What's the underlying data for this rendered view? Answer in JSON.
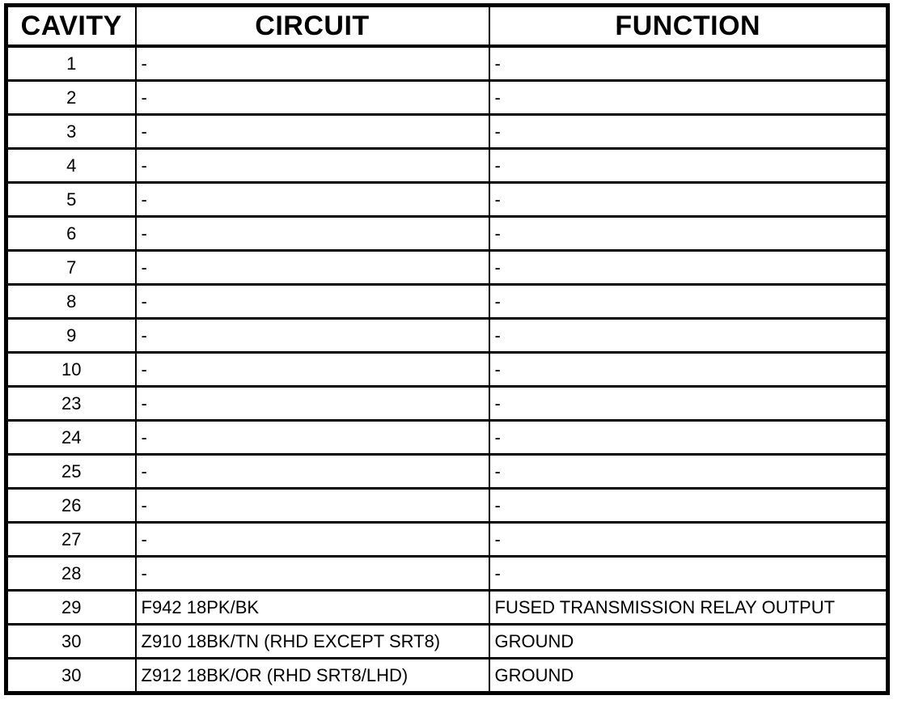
{
  "table": {
    "headers": [
      "CAVITY",
      "CIRCUIT",
      "FUNCTION"
    ],
    "rows": [
      {
        "cavity": "1",
        "circuit": "-",
        "function": "-"
      },
      {
        "cavity": "2",
        "circuit": "-",
        "function": "-"
      },
      {
        "cavity": "3",
        "circuit": "-",
        "function": "-"
      },
      {
        "cavity": "4",
        "circuit": "-",
        "function": "-"
      },
      {
        "cavity": "5",
        "circuit": "-",
        "function": "-"
      },
      {
        "cavity": "6",
        "circuit": "-",
        "function": "-"
      },
      {
        "cavity": "7",
        "circuit": "-",
        "function": "-"
      },
      {
        "cavity": "8",
        "circuit": "-",
        "function": "-"
      },
      {
        "cavity": "9",
        "circuit": "-",
        "function": "-"
      },
      {
        "cavity": "10",
        "circuit": "-",
        "function": "-"
      },
      {
        "cavity": "23",
        "circuit": "-",
        "function": "-"
      },
      {
        "cavity": "24",
        "circuit": "-",
        "function": "-"
      },
      {
        "cavity": "25",
        "circuit": "-",
        "function": "-"
      },
      {
        "cavity": "26",
        "circuit": "-",
        "function": "-"
      },
      {
        "cavity": "27",
        "circuit": "-",
        "function": "-"
      },
      {
        "cavity": "28",
        "circuit": "-",
        "function": "-"
      },
      {
        "cavity": "29",
        "circuit": "F942 18PK/BK",
        "function": "FUSED TRANSMISSION RELAY OUTPUT"
      },
      {
        "cavity": "30",
        "circuit": "Z910 18BK/TN (RHD EXCEPT SRT8)",
        "function": "GROUND"
      },
      {
        "cavity": "30",
        "circuit": "Z912 18BK/OR (RHD SRT8/LHD)",
        "function": "GROUND"
      }
    ],
    "colors": {
      "border": "#000000",
      "background": "#ffffff",
      "text": "#000000"
    }
  }
}
